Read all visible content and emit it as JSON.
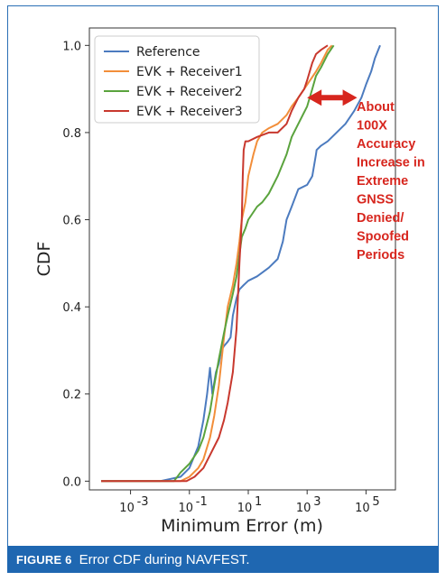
{
  "chart_data": {
    "type": "line",
    "xscale": "log",
    "xlabel": "Minimum Error (m)",
    "ylabel": "CDF",
    "xlim": [
      4e-05,
      1000000
    ],
    "ylim": [
      -0.02,
      1.04
    ],
    "x_ticks": [
      {
        "value": 0.001,
        "base": "10",
        "exp": "-3"
      },
      {
        "value": 0.1,
        "base": "10",
        "exp": "-1"
      },
      {
        "value": 10,
        "base": "10",
        "exp": "1"
      },
      {
        "value": 1000,
        "base": "10",
        "exp": "3"
      },
      {
        "value": 100000,
        "base": "10",
        "exp": "5"
      }
    ],
    "y_ticks": [
      "0.0",
      "0.2",
      "0.4",
      "0.6",
      "0.8",
      "1.0"
    ],
    "legend_position": "top-left",
    "series": [
      {
        "name": "Reference",
        "color": "#4c7bbf",
        "points": [
          [
            0.0001,
            0
          ],
          [
            0.01,
            0
          ],
          [
            0.05,
            0.01
          ],
          [
            0.1,
            0.03
          ],
          [
            0.2,
            0.08
          ],
          [
            0.3,
            0.14
          ],
          [
            0.4,
            0.2
          ],
          [
            0.5,
            0.26
          ],
          [
            0.6,
            0.2
          ],
          [
            0.8,
            0.25
          ],
          [
            1,
            0.27
          ],
          [
            1.2,
            0.3
          ],
          [
            1.5,
            0.31
          ],
          [
            2,
            0.32
          ],
          [
            2.5,
            0.33
          ],
          [
            3,
            0.38
          ],
          [
            4,
            0.42
          ],
          [
            5,
            0.44
          ],
          [
            7,
            0.45
          ],
          [
            10,
            0.46
          ],
          [
            20,
            0.47
          ],
          [
            50,
            0.49
          ],
          [
            100,
            0.51
          ],
          [
            150,
            0.55
          ],
          [
            200,
            0.6
          ],
          [
            300,
            0.63
          ],
          [
            500,
            0.67
          ],
          [
            1000,
            0.68
          ],
          [
            1500,
            0.7
          ],
          [
            2000,
            0.75
          ],
          [
            2100,
            0.76
          ],
          [
            3000,
            0.77
          ],
          [
            5000,
            0.78
          ],
          [
            10000,
            0.8
          ],
          [
            20000,
            0.82
          ],
          [
            40000,
            0.85
          ],
          [
            70000,
            0.88
          ],
          [
            100000,
            0.91
          ],
          [
            150000,
            0.94
          ],
          [
            200000,
            0.97
          ],
          [
            300000,
            1.0
          ]
        ]
      },
      {
        "name": "EVK + Receiver1",
        "color": "#f28e3a",
        "points": [
          [
            0.0001,
            0
          ],
          [
            0.05,
            0
          ],
          [
            0.1,
            0.01
          ],
          [
            0.2,
            0.03
          ],
          [
            0.3,
            0.05
          ],
          [
            0.5,
            0.1
          ],
          [
            0.7,
            0.15
          ],
          [
            1,
            0.22
          ],
          [
            1.5,
            0.33
          ],
          [
            2,
            0.4
          ],
          [
            3,
            0.45
          ],
          [
            4,
            0.5
          ],
          [
            5,
            0.55
          ],
          [
            6,
            0.6
          ],
          [
            8,
            0.64
          ],
          [
            10,
            0.7
          ],
          [
            15,
            0.75
          ],
          [
            20,
            0.78
          ],
          [
            30,
            0.8
          ],
          [
            50,
            0.81
          ],
          [
            100,
            0.82
          ],
          [
            200,
            0.84
          ],
          [
            300,
            0.86
          ],
          [
            500,
            0.88
          ],
          [
            1000,
            0.91
          ],
          [
            2000,
            0.94
          ],
          [
            3000,
            0.96
          ],
          [
            5000,
            0.99
          ],
          [
            7000,
            1.0
          ]
        ]
      },
      {
        "name": "EVK + Receiver2",
        "color": "#5aa33d",
        "points": [
          [
            0.0001,
            0
          ],
          [
            0.03,
            0
          ],
          [
            0.05,
            0.02
          ],
          [
            0.1,
            0.04
          ],
          [
            0.2,
            0.07
          ],
          [
            0.3,
            0.1
          ],
          [
            0.5,
            0.16
          ],
          [
            0.7,
            0.22
          ],
          [
            1,
            0.28
          ],
          [
            1.5,
            0.34
          ],
          [
            2,
            0.38
          ],
          [
            3,
            0.43
          ],
          [
            4,
            0.47
          ],
          [
            5,
            0.52
          ],
          [
            6,
            0.56
          ],
          [
            8,
            0.58
          ],
          [
            10,
            0.6
          ],
          [
            20,
            0.63
          ],
          [
            30,
            0.64
          ],
          [
            50,
            0.66
          ],
          [
            100,
            0.7
          ],
          [
            200,
            0.75
          ],
          [
            300,
            0.79
          ],
          [
            500,
            0.82
          ],
          [
            1000,
            0.86
          ],
          [
            1500,
            0.9
          ],
          [
            2000,
            0.93
          ],
          [
            3000,
            0.95
          ],
          [
            5000,
            0.98
          ],
          [
            8000,
            1.0
          ]
        ]
      },
      {
        "name": "EVK + Receiver3",
        "color": "#c8382e",
        "points": [
          [
            0.0001,
            0
          ],
          [
            0.08,
            0
          ],
          [
            0.15,
            0.01
          ],
          [
            0.3,
            0.03
          ],
          [
            0.5,
            0.06
          ],
          [
            1,
            0.1
          ],
          [
            1.5,
            0.14
          ],
          [
            2,
            0.18
          ],
          [
            3,
            0.25
          ],
          [
            4,
            0.35
          ],
          [
            5,
            0.5
          ],
          [
            6,
            0.6
          ],
          [
            6.5,
            0.7
          ],
          [
            7,
            0.76
          ],
          [
            8,
            0.78
          ],
          [
            10,
            0.78
          ],
          [
            20,
            0.79
          ],
          [
            50,
            0.8
          ],
          [
            100,
            0.8
          ],
          [
            200,
            0.82
          ],
          [
            300,
            0.85
          ],
          [
            500,
            0.88
          ],
          [
            800,
            0.9
          ],
          [
            1000,
            0.92
          ],
          [
            1500,
            0.96
          ],
          [
            2000,
            0.98
          ],
          [
            3000,
            0.99
          ],
          [
            5000,
            1.0
          ]
        ]
      }
    ],
    "annotation": {
      "lines": [
        "About",
        "100X",
        "Accuracy",
        "Increase in",
        "Extreme",
        "GNSS",
        "Denied/",
        "Spoofed",
        "Periods"
      ],
      "color": "#d7261e",
      "arrow_from_x": 1000,
      "arrow_to_x": 50000,
      "arrow_y": 0.88
    }
  },
  "caption": {
    "label": "FIGURE 6",
    "title": "Error CDF during NAVFEST."
  }
}
